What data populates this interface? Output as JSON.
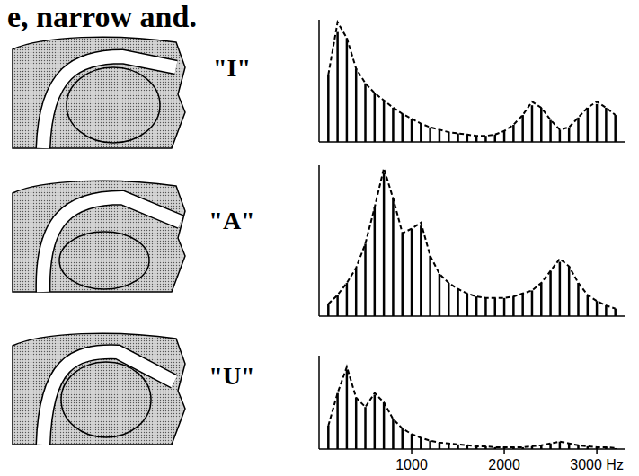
{
  "header": {
    "title": "e, narrow and."
  },
  "chart_data": [
    {
      "type": "bar",
      "title": "\"I\"",
      "x": [
        100,
        200,
        300,
        400,
        500,
        600,
        700,
        800,
        900,
        1000,
        1100,
        1200,
        1300,
        1400,
        1500,
        1600,
        1700,
        1800,
        1900,
        2000,
        2100,
        2200,
        2300,
        2400,
        2500,
        2600,
        2700,
        2800,
        2900,
        3000,
        3100,
        3200
      ],
      "xlim": [
        0,
        3300
      ],
      "ylim": [
        0,
        100
      ],
      "tick_labels": false,
      "series": [
        {
          "type": "bar",
          "color": "#000000",
          "values": [
            55,
            90,
            85,
            60,
            48,
            40,
            34,
            28,
            23,
            19,
            15,
            12,
            10,
            8,
            7,
            6,
            5,
            5,
            6,
            9,
            14,
            22,
            30,
            28,
            18,
            10,
            12,
            20,
            28,
            31,
            28,
            22
          ]
        },
        {
          "type": "line",
          "color": "#000000",
          "line_style": "dashed",
          "values": [
            55,
            98,
            85,
            60,
            48,
            40,
            34,
            28,
            23,
            19,
            15,
            12,
            10,
            8,
            7,
            6,
            5,
            5,
            6,
            9,
            14,
            22,
            33,
            28,
            18,
            10,
            12,
            20,
            28,
            33,
            28,
            22
          ]
        }
      ]
    },
    {
      "type": "bar",
      "title": "\"A\"",
      "x": [
        100,
        200,
        300,
        400,
        500,
        600,
        700,
        800,
        900,
        1000,
        1100,
        1200,
        1300,
        1400,
        1500,
        1600,
        1700,
        1800,
        1900,
        2000,
        2100,
        2200,
        2300,
        2400,
        2500,
        2600,
        2700,
        2800,
        2900,
        3000,
        3100,
        3200
      ],
      "xlim": [
        0,
        3300
      ],
      "ylim": [
        0,
        100
      ],
      "tick_labels": false,
      "series": [
        {
          "type": "bar",
          "color": "#000000",
          "values": [
            8,
            14,
            22,
            32,
            48,
            72,
            95,
            78,
            55,
            58,
            60,
            40,
            28,
            22,
            18,
            15,
            13,
            12,
            12,
            12,
            13,
            15,
            17,
            22,
            30,
            36,
            33,
            22,
            14,
            10,
            7,
            5
          ]
        },
        {
          "type": "line",
          "color": "#000000",
          "line_style": "dashed",
          "values": [
            8,
            14,
            22,
            32,
            48,
            72,
            98,
            78,
            55,
            58,
            62,
            40,
            28,
            22,
            18,
            15,
            13,
            12,
            12,
            12,
            13,
            15,
            17,
            22,
            30,
            38,
            33,
            22,
            14,
            10,
            7,
            5
          ]
        }
      ]
    },
    {
      "type": "bar",
      "title": "\"U\"",
      "x": [
        100,
        200,
        300,
        400,
        500,
        600,
        700,
        800,
        900,
        1000,
        1100,
        1200,
        1300,
        1400,
        1500,
        1600,
        1700,
        1800,
        1900,
        2000,
        2100,
        2200,
        2300,
        2400,
        2500,
        2600,
        2700,
        2800,
        2900,
        3000,
        3100,
        3200
      ],
      "xlim": [
        0,
        3300
      ],
      "ylim": [
        0,
        100
      ],
      "tick_labels": "x",
      "xticks": [
        1000,
        2000,
        {
          "value": 3000,
          "label": "3000 Hz"
        }
      ],
      "series": [
        {
          "type": "bar",
          "color": "#000000",
          "values": [
            25,
            60,
            85,
            55,
            45,
            58,
            50,
            32,
            22,
            16,
            12,
            9,
            7,
            6,
            5,
            4,
            3,
            3,
            2,
            2,
            2,
            2,
            3,
            4,
            6,
            8,
            6,
            4,
            3,
            2,
            2,
            1
          ]
        },
        {
          "type": "line",
          "color": "#000000",
          "line_style": "dashed",
          "values": [
            25,
            60,
            88,
            55,
            45,
            60,
            50,
            32,
            22,
            16,
            12,
            9,
            7,
            6,
            5,
            4,
            3,
            3,
            2,
            2,
            2,
            2,
            3,
            4,
            6,
            8,
            6,
            4,
            3,
            2,
            2,
            1
          ]
        }
      ]
    }
  ]
}
